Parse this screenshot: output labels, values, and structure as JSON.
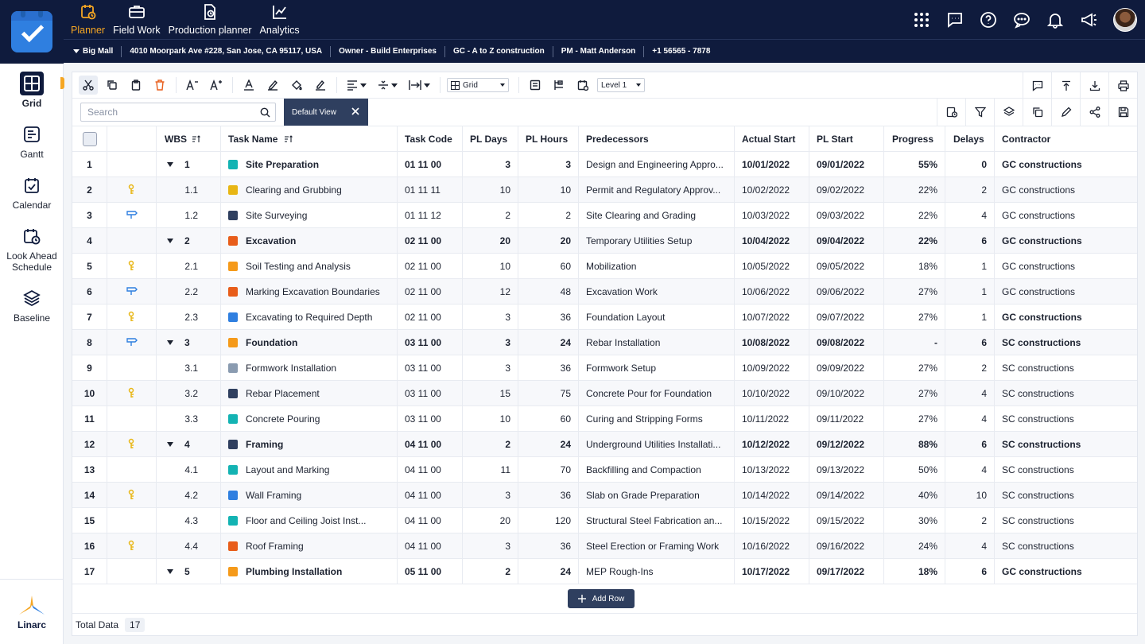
{
  "nav": {
    "items": [
      {
        "label": "Planner",
        "icon": "planner-icon",
        "active": true
      },
      {
        "label": "Field Work",
        "icon": "briefcase-icon",
        "active": false
      },
      {
        "label": "Production planner",
        "icon": "production-icon",
        "active": false
      },
      {
        "label": "Analytics",
        "icon": "analytics-icon",
        "active": false
      }
    ],
    "right_icons": [
      "apps-grid-icon",
      "chat-icon",
      "help-icon",
      "message-icon",
      "bell-icon",
      "megaphone-icon",
      "user-avatar"
    ]
  },
  "project": {
    "name": "Big Mall",
    "address": "4010 Moorpark Ave #228, San Jose, CA 95117, USA",
    "owner": "Owner - Build Enterprises",
    "gc": "GC - A to Z construction",
    "pm": "PM -  Matt Anderson",
    "phone": "+1 56565 - 7878"
  },
  "rail": {
    "items": [
      {
        "label": "Grid",
        "icon": "grid-icon",
        "active": true
      },
      {
        "label": "Gantt",
        "icon": "gantt-icon",
        "active": false
      },
      {
        "label": "Calendar",
        "icon": "calendar-icon",
        "active": false
      },
      {
        "label": "Look Ahead Schedule",
        "icon": "look-ahead-icon",
        "active": false
      },
      {
        "label": "Baseline",
        "icon": "layers-icon",
        "active": false
      }
    ],
    "brand": "Linarc"
  },
  "toolbar": {
    "view_select": "Grid",
    "level_select": "Level 1"
  },
  "search": {
    "placeholder": "Search",
    "value": ""
  },
  "view_chip": {
    "label": "Default View"
  },
  "table": {
    "columns": [
      "WBS",
      "Task Name",
      "Task Code",
      "PL Days",
      "PL Hours",
      "Predecessors",
      "Actual Start",
      "PL Start",
      "Progress",
      "Delays",
      "Contractor"
    ],
    "rows": [
      {
        "n": "1",
        "flag": "",
        "wbs": "1",
        "parent": true,
        "color": "#13b3b3",
        "name": "Site Preparation",
        "code": "01 11 00",
        "days": "3",
        "hours": "3",
        "pred": "Design and Engineering Appro...",
        "astart": "10/01/2022",
        "plstart": "09/01/2022",
        "progress": "55%",
        "delays": "0",
        "contractor": "GC constructions"
      },
      {
        "n": "2",
        "flag": "key",
        "wbs": "1.1",
        "parent": false,
        "color": "#e8b614",
        "name": "Clearing and Grubbing",
        "code": "01 11 11",
        "days": "10",
        "hours": "10",
        "pred": "Permit and Regulatory Approv...",
        "astart": "10/02/2022",
        "plstart": "09/02/2022",
        "progress": "22%",
        "delays": "2",
        "contractor": "GC constructions"
      },
      {
        "n": "3",
        "flag": "sign",
        "wbs": "1.2",
        "parent": false,
        "color": "#2f3f5f",
        "name": "Site Surveying",
        "code": "01 11 12",
        "days": "2",
        "hours": "2",
        "pred": "Site Clearing and Grading",
        "astart": "10/03/2022",
        "plstart": "09/03/2022",
        "progress": "22%",
        "delays": "4",
        "contractor": "GC constructions"
      },
      {
        "n": "4",
        "flag": "",
        "wbs": "2",
        "parent": true,
        "color": "#e85d1a",
        "name": "Excavation",
        "code": "02 11 00",
        "days": "20",
        "hours": "20",
        "pred": "Temporary Utilities Setup",
        "astart": "10/04/2022",
        "plstart": "09/04/2022",
        "progress": "22%",
        "delays": "6",
        "contractor": "GC constructions"
      },
      {
        "n": "5",
        "flag": "key",
        "wbs": "2.1",
        "parent": false,
        "color": "#f59a1a",
        "name": "Soil Testing and Analysis",
        "code": "02 11 00",
        "days": "10",
        "hours": "60",
        "pred": "Mobilization",
        "astart": "10/05/2022",
        "plstart": "09/05/2022",
        "progress": "18%",
        "delays": "1",
        "contractor": "GC constructions"
      },
      {
        "n": "6",
        "flag": "sign",
        "wbs": "2.2",
        "parent": false,
        "color": "#e85d1a",
        "name": "Marking Excavation Boundaries",
        "code": "02 11 00",
        "days": "12",
        "hours": "48",
        "pred": "Excavation Work",
        "astart": "10/06/2022",
        "plstart": "09/06/2022",
        "progress": "27%",
        "delays": "1",
        "contractor": "GC constructions"
      },
      {
        "n": "7",
        "flag": "key",
        "wbs": "2.3",
        "parent": false,
        "color": "#2f7fe0",
        "name": "Excavating to Required Depth",
        "code": "02 11 00",
        "days": "3",
        "hours": "36",
        "pred": "Foundation Layout",
        "astart": "10/07/2022",
        "plstart": "09/07/2022",
        "progress": "27%",
        "delays": "1",
        "contractor": "GC constructions"
      },
      {
        "n": "8",
        "flag": "sign",
        "wbs": "3",
        "parent": true,
        "color": "#f59a1a",
        "name": "Foundation",
        "code": "03 11 00",
        "days": "3",
        "hours": "24",
        "pred": "Rebar Installation",
        "astart": "10/08/2022",
        "plstart": "09/08/2022",
        "progress": "-",
        "delays": "6",
        "contractor": "SC constructions"
      },
      {
        "n": "9",
        "flag": "",
        "wbs": "3.1",
        "parent": false,
        "color": "#8a9bb0",
        "name": "Formwork Installation",
        "code": "03 11 00",
        "days": "3",
        "hours": "36",
        "pred": "Formwork Setup",
        "astart": "10/09/2022",
        "plstart": "09/09/2022",
        "progress": "27%",
        "delays": "2",
        "contractor": "SC constructions"
      },
      {
        "n": "10",
        "flag": "key",
        "wbs": "3.2",
        "parent": false,
        "color": "#2f3f5f",
        "name": "Rebar Placement",
        "code": "03 11 00",
        "days": "15",
        "hours": "75",
        "pred": "Concrete Pour for Foundation",
        "astart": "10/10/2022",
        "plstart": "09/10/2022",
        "progress": "27%",
        "delays": "4",
        "contractor": "SC constructions"
      },
      {
        "n": "11",
        "flag": "",
        "wbs": "3.3",
        "parent": false,
        "color": "#13b3b3",
        "name": "Concrete Pouring",
        "code": "03 11 00",
        "days": "10",
        "hours": "60",
        "pred": "Curing and Stripping Forms",
        "astart": "10/11/2022",
        "plstart": "09/11/2022",
        "progress": "27%",
        "delays": "4",
        "contractor": "SC constructions"
      },
      {
        "n": "12",
        "flag": "key",
        "wbs": "4",
        "parent": true,
        "color": "#2f3f5f",
        "name": "Framing",
        "code": "04 11 00",
        "days": "2",
        "hours": "24",
        "pred": "Underground Utilities Installati...",
        "astart": "10/12/2022",
        "plstart": "09/12/2022",
        "progress": "88%",
        "delays": "6",
        "contractor": "SC constructions"
      },
      {
        "n": "13",
        "flag": "",
        "wbs": "4.1",
        "parent": false,
        "color": "#13b3b3",
        "name": "Layout and Marking",
        "code": "04 11 00",
        "days": "11",
        "hours": "70",
        "pred": "Backfilling and Compaction",
        "astart": "10/13/2022",
        "plstart": "09/13/2022",
        "progress": "50%",
        "delays": "4",
        "contractor": "SC constructions"
      },
      {
        "n": "14",
        "flag": "key",
        "wbs": "4.2",
        "parent": false,
        "color": "#2f7fe0",
        "name": "Wall Framing",
        "code": "04 11 00",
        "days": "3",
        "hours": "36",
        "pred": "Slab on Grade Preparation",
        "astart": "10/14/2022",
        "plstart": "09/14/2022",
        "progress": "40%",
        "delays": "10",
        "contractor": "SC constructions"
      },
      {
        "n": "15",
        "flag": "",
        "wbs": "4.3",
        "parent": false,
        "color": "#13b3b3",
        "name": "Floor and Ceiling Joist Inst...",
        "code": "04 11 00",
        "days": "20",
        "hours": "120",
        "pred": "Structural Steel Fabrication an...",
        "astart": "10/15/2022",
        "plstart": "09/15/2022",
        "progress": "30%",
        "delays": "2",
        "contractor": "SC constructions"
      },
      {
        "n": "16",
        "flag": "key",
        "wbs": "4.4",
        "parent": false,
        "color": "#e85d1a",
        "name": "Roof Framing",
        "code": "04 11 00",
        "days": "3",
        "hours": "36",
        "pred": "Steel Erection or Framing Work",
        "astart": "10/16/2022",
        "plstart": "09/16/2022",
        "progress": "24%",
        "delays": "4",
        "contractor": "SC constructions"
      },
      {
        "n": "17",
        "flag": "",
        "wbs": "5",
        "parent": true,
        "color": "#f59a1a",
        "name": "Plumbing Installation",
        "code": "05 11 00",
        "days": "2",
        "hours": "24",
        "pred": "MEP Rough-Ins",
        "astart": "10/17/2022",
        "plstart": "09/17/2022",
        "progress": "18%",
        "delays": "6",
        "contractor": "GC constructions"
      }
    ]
  },
  "add_row": {
    "label": "Add Row"
  },
  "footer": {
    "label": "Total Data",
    "count": "17"
  },
  "colors": {
    "navy": "#0f1b3d",
    "accent": "#f5a623",
    "key": "#e8b614",
    "sign": "#2f7fe0"
  }
}
